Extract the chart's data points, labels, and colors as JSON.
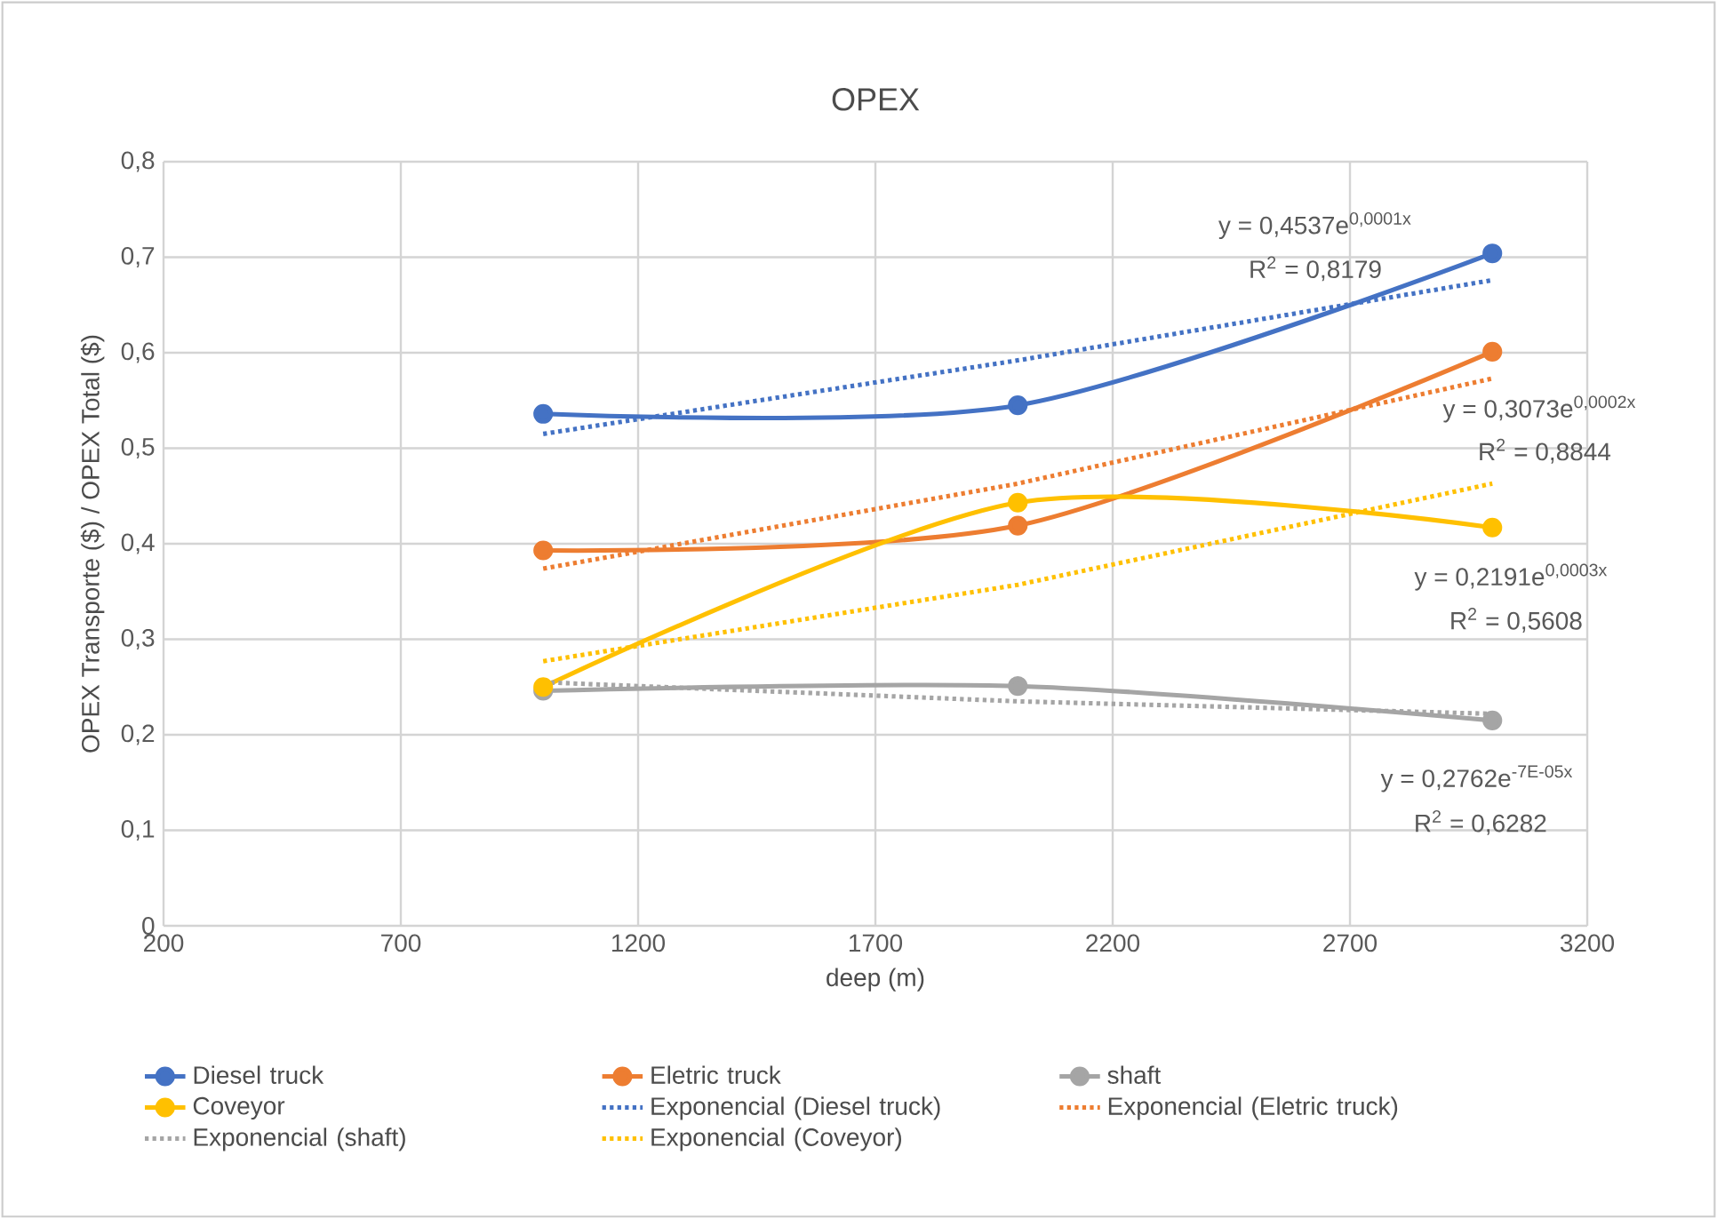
{
  "chart_data": {
    "type": "line",
    "title": "OPEX",
    "xlabel": "deep (m)",
    "ylabel": "OPEX Transporte  ($) / OPEX Total ($)",
    "xlim": [
      200,
      3200
    ],
    "xticks": [
      200,
      700,
      1200,
      1700,
      2200,
      2700,
      3200
    ],
    "ylim": [
      0,
      0.8
    ],
    "yticks": [
      0,
      {
        "value": 0.1,
        "label": "0,1"
      },
      {
        "value": 0.2,
        "label": "0,2"
      },
      {
        "value": 0.3,
        "label": "0,3"
      },
      {
        "value": 0.4,
        "label": "0,4"
      },
      {
        "value": 0.5,
        "label": "0,5"
      },
      {
        "value": 0.6,
        "label": "0,6"
      },
      {
        "value": 0.7,
        "label": "0,7"
      },
      {
        "value": 0.8,
        "label": "0,8"
      }
    ],
    "x": [
      1000,
      2000,
      3000
    ],
    "grid": true,
    "legend": "bottom",
    "marker": "circle",
    "line_style": "solid",
    "series": [
      {
        "name": "Diesel truck",
        "color": "#4472c4",
        "values": [
          0.536,
          0.545,
          0.704
        ]
      },
      {
        "name": "Eletric truck",
        "color": "#ed7d31",
        "values": [
          0.393,
          0.419,
          0.601
        ]
      },
      {
        "name": "shaft",
        "color": "#a5a5a5",
        "values": [
          0.246,
          0.251,
          0.215
        ]
      },
      {
        "name": "Coveyor",
        "color": "#ffc000",
        "values": [
          0.25,
          0.443,
          0.417
        ]
      },
      {
        "name": "Exponencial (Diesel truck)",
        "color": "#4472c4",
        "type": "line",
        "marker": "none",
        "line_style": "dotted",
        "x": [
          1000,
          2000,
          3000
        ],
        "values": [
          0.515,
          0.592,
          0.676
        ]
      },
      {
        "name": "Exponencial (Eletric truck)",
        "color": "#ed7d31",
        "type": "line",
        "marker": "none",
        "line_style": "dotted",
        "x": [
          1000,
          2000,
          3000
        ],
        "values": [
          0.374,
          0.463,
          0.573
        ]
      },
      {
        "name": "Exponencial (shaft)",
        "color": "#a5a5a5",
        "type": "line",
        "marker": "none",
        "line_style": "dotted",
        "x": [
          1000,
          2000,
          3000
        ],
        "values": [
          0.255,
          0.235,
          0.222
        ]
      },
      {
        "name": "Exponencial (Coveyor)",
        "color": "#ffc000",
        "type": "line",
        "marker": "none",
        "line_style": "dotted",
        "x": [
          1000,
          2000,
          3000
        ],
        "values": [
          0.277,
          0.357,
          0.463
        ]
      }
    ],
    "annotations": [
      "y = 0,4537e$^{0,0001x}$",
      "R$^{2}$ = 0,8179",
      "y = 0,3073e$^{0,0002x}$",
      "R$^{2}$ = 0,8844",
      "y = 0,2191e$^{0,0003x}$",
      "R$^{2}$ = 0,5608",
      "y = 0,2762e$^{-7E-05x}$",
      "R$^{2}$ = 0,6282"
    ]
  }
}
